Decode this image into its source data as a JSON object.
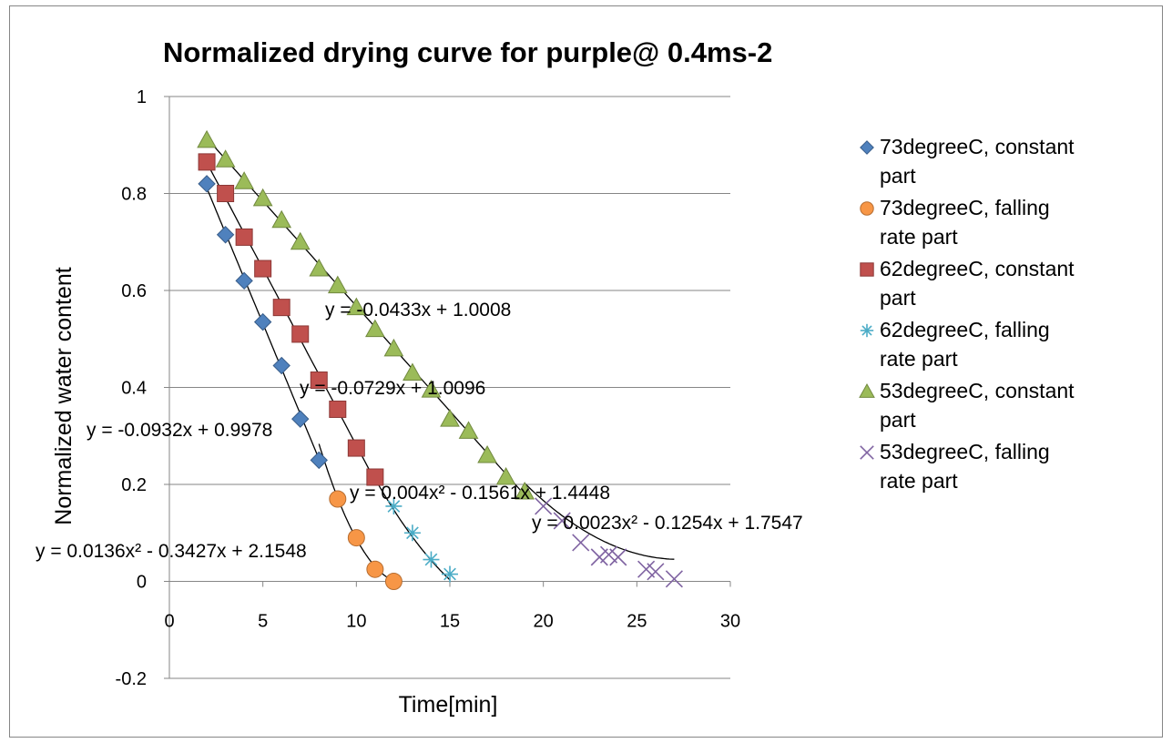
{
  "chart_data": {
    "type": "scatter",
    "title": "Normalized drying curve for purple@ 0.4ms-2",
    "xlabel": "Time[min]",
    "ylabel": "Normalized water content",
    "xlim": [
      0,
      30
    ],
    "ylim": [
      -0.2,
      1
    ],
    "x_ticks": [
      "0",
      "5",
      "10",
      "15",
      "20",
      "25",
      "30"
    ],
    "y_ticks": [
      "-0.2",
      "0",
      "0.2",
      "0.4",
      "0.6",
      "0.8",
      "1"
    ],
    "grid": "horizontal",
    "legend_position": "right",
    "series": [
      {
        "name": "73degreeC, constant part",
        "marker": "diamond",
        "color": "#4F81BD",
        "x": [
          2,
          3,
          4,
          5,
          6,
          7,
          8
        ],
        "y": [
          0.82,
          0.715,
          0.62,
          0.535,
          0.445,
          0.335,
          0.25
        ]
      },
      {
        "name": "73degreeC, falling rate part",
        "marker": "circle",
        "color": "#F79646",
        "x": [
          9,
          10,
          11,
          12
        ],
        "y": [
          0.17,
          0.09,
          0.025,
          0.0
        ]
      },
      {
        "name": "62degreeC, constant part",
        "marker": "square",
        "color": "#C0504D",
        "x": [
          2,
          3,
          4,
          5,
          6,
          7,
          8,
          9,
          10,
          11
        ],
        "y": [
          0.865,
          0.8,
          0.71,
          0.645,
          0.565,
          0.51,
          0.415,
          0.355,
          0.275,
          0.215
        ]
      },
      {
        "name": "62degreeC, falling rate part",
        "marker": "star",
        "color": "#4BACC6",
        "x": [
          12,
          13,
          14,
          15
        ],
        "y": [
          0.155,
          0.1,
          0.045,
          0.015
        ]
      },
      {
        "name": "53degreeC, constant part",
        "marker": "triangle",
        "color": "#9BBB59",
        "x": [
          2,
          3,
          4,
          5,
          6,
          7,
          8,
          9,
          10,
          11,
          12,
          13,
          14,
          15,
          16,
          17,
          18,
          19
        ],
        "y": [
          0.91,
          0.87,
          0.825,
          0.79,
          0.745,
          0.7,
          0.645,
          0.61,
          0.565,
          0.52,
          0.48,
          0.43,
          0.395,
          0.335,
          0.31,
          0.26,
          0.215,
          0.185
        ]
      },
      {
        "name": "53degreeC, falling rate part",
        "marker": "x",
        "color": "#8064A2",
        "x": [
          20,
          21,
          22,
          23,
          23.5,
          24,
          25.5,
          26,
          27
        ],
        "y": [
          0.155,
          0.125,
          0.08,
          0.05,
          0.055,
          0.05,
          0.025,
          0.02,
          0.005
        ]
      }
    ],
    "trendlines": [
      {
        "series": "73degreeC, constant part",
        "equation": "y = -0.0932x + 0.9978",
        "coef": [
          0.9978,
          -0.0932
        ],
        "x_range": [
          2,
          8
        ]
      },
      {
        "series": "73degreeC, falling rate part",
        "equation": "y = 0.0136x² - 0.3427x + 2.1548",
        "coef": [
          2.1548,
          -0.3427,
          0.0136
        ],
        "x_range": [
          8,
          12
        ]
      },
      {
        "series": "62degreeC, constant part",
        "equation": "y = -0.0729x + 1.0096",
        "coef": [
          1.0096,
          -0.0729
        ],
        "x_range": [
          2,
          11
        ]
      },
      {
        "series": "62degreeC, falling rate part",
        "equation": "y = 0.004x² - 0.1561x + 1.4448",
        "coef": [
          1.4448,
          -0.1561,
          0.004
        ],
        "x_range": [
          11,
          15
        ]
      },
      {
        "series": "53degreeC, constant part",
        "equation": "y = -0.0433x + 1.0008",
        "coef": [
          1.0008,
          -0.0433
        ],
        "x_range": [
          2,
          19
        ]
      },
      {
        "series": "53degreeC, falling rate part",
        "equation": "y = 0.0023x² - 0.1254x + 1.7547",
        "coef": [
          1.7547,
          -0.1254,
          0.0023
        ],
        "x_range": [
          19,
          27
        ]
      }
    ]
  }
}
